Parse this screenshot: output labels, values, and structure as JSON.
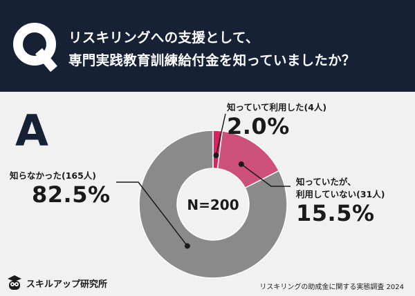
{
  "header": {
    "q_letter": "Q",
    "question_line1": "リスキリングへの支援として、",
    "question_line2": "専門実践教育訓練給付金を知っていましたか？"
  },
  "answer_letter": "A",
  "colors": {
    "header_bg": "#172136",
    "background": "#f1f1f1",
    "known_used": "#d5245f",
    "known_unused": "#cd507a",
    "unknown": "#8a8a8a"
  },
  "chart_data": {
    "type": "pie",
    "donut": true,
    "center_label": "N=200",
    "categories": [
      "知っていて利用した(4人)",
      "知っていたが、利用していない(31人)",
      "知らなかった(165人)"
    ],
    "values": [
      2.0,
      15.5,
      82.5
    ],
    "counts": [
      4,
      31,
      165
    ],
    "label_lines": [
      [
        "知っていて利用した(4人)"
      ],
      [
        "知っていたが、",
        "利用していない(31人)"
      ],
      [
        "知らなかった(165人)"
      ]
    ],
    "value_labels": [
      "2.0%",
      "15.5%",
      "82.5%"
    ],
    "colors": [
      "#d5245f",
      "#cd507a",
      "#8a8a8a"
    ]
  },
  "footer": {
    "brand": "スキルアップ研究所",
    "source": "リスキリングの助成金に関する実態調査 2024"
  }
}
